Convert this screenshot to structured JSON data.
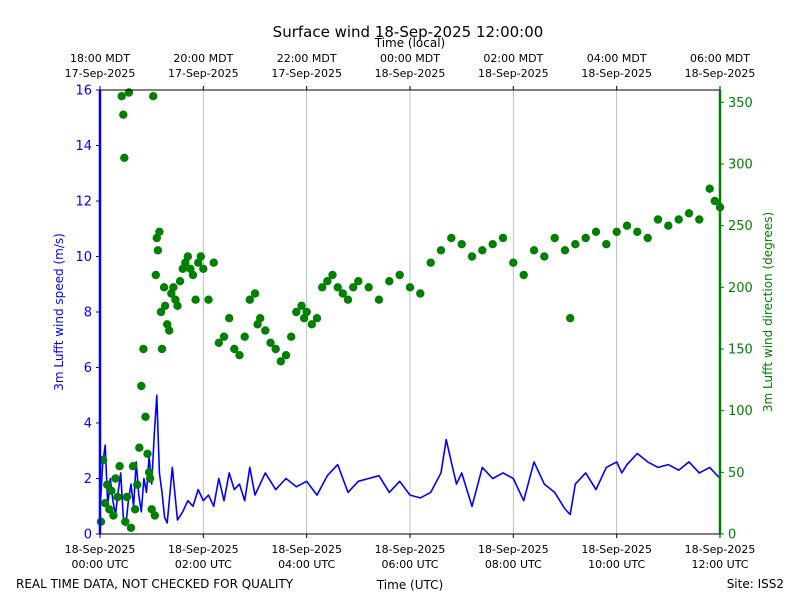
{
  "chart_data": {
    "type": "line",
    "title": "Surface wind 18-Sep-2025 12:00:00",
    "top_axis_title": "Time (local)",
    "xlabel": "Time (UTC)",
    "ylabel_left": "3m Lufft wind speed (m/s)",
    "ylabel_right": "3m Lufft wind direction (degrees)",
    "left_color": "#0000ff",
    "right_color": "#008000",
    "x_unit": "hours since 18-Sep-2025 00:00 UTC",
    "xlim": [
      0,
      12
    ],
    "ylim_left": [
      0,
      16
    ],
    "ylim_right": [
      0,
      360
    ],
    "yticks_left": [
      "0",
      "2",
      "4",
      "6",
      "8",
      "10",
      "12",
      "14",
      "16"
    ],
    "yticks_right": [
      "0",
      "50",
      "100",
      "150",
      "200",
      "250",
      "300",
      "350"
    ],
    "grid": "vertical lines at UTC ticks",
    "footer_left": "REAL TIME DATA, NOT CHECKED FOR QUALITY",
    "footer_right": "Site: ISS2",
    "x_ticks_bottom": [
      {
        "x": 0,
        "date": "18-Sep-2025",
        "time": "00:00 UTC"
      },
      {
        "x": 2,
        "date": "18-Sep-2025",
        "time": "02:00 UTC"
      },
      {
        "x": 4,
        "date": "18-Sep-2025",
        "time": "04:00 UTC"
      },
      {
        "x": 6,
        "date": "18-Sep-2025",
        "time": "06:00 UTC"
      },
      {
        "x": 8,
        "date": "18-Sep-2025",
        "time": "08:00 UTC"
      },
      {
        "x": 10,
        "date": "18-Sep-2025",
        "time": "10:00 UTC"
      },
      {
        "x": 12,
        "date": "18-Sep-2025",
        "time": "12:00 UTC"
      }
    ],
    "x_ticks_top": [
      {
        "x": 0,
        "time": "18:00 MDT",
        "date": "17-Sep-2025"
      },
      {
        "x": 2,
        "time": "20:00 MDT",
        "date": "17-Sep-2025"
      },
      {
        "x": 4,
        "time": "22:00 MDT",
        "date": "17-Sep-2025"
      },
      {
        "x": 6,
        "time": "00:00 MDT",
        "date": "18-Sep-2025"
      },
      {
        "x": 8,
        "time": "02:00 MDT",
        "date": "18-Sep-2025"
      },
      {
        "x": 10,
        "time": "04:00 MDT",
        "date": "18-Sep-2025"
      },
      {
        "x": 12,
        "time": "06:00 MDT",
        "date": "18-Sep-2025"
      }
    ],
    "series": [
      {
        "name": "3m Lufft wind speed (m/s)",
        "axis": "left",
        "style": "line",
        "x": [
          0,
          0.05,
          0.1,
          0.15,
          0.2,
          0.25,
          0.3,
          0.35,
          0.4,
          0.45,
          0.5,
          0.55,
          0.6,
          0.65,
          0.7,
          0.75,
          0.8,
          0.85,
          0.9,
          0.95,
          1.0,
          1.05,
          1.1,
          1.15,
          1.2,
          1.25,
          1.3,
          1.35,
          1.4,
          1.5,
          1.6,
          1.7,
          1.8,
          1.9,
          2.0,
          2.1,
          2.2,
          2.3,
          2.4,
          2.5,
          2.6,
          2.7,
          2.8,
          2.9,
          3.0,
          3.2,
          3.4,
          3.6,
          3.8,
          4.0,
          4.2,
          4.4,
          4.6,
          4.8,
          5.0,
          5.2,
          5.4,
          5.6,
          5.8,
          6.0,
          6.2,
          6.4,
          6.6,
          6.7,
          6.8,
          6.9,
          7.0,
          7.2,
          7.4,
          7.6,
          7.8,
          8.0,
          8.2,
          8.4,
          8.6,
          8.8,
          9.0,
          9.1,
          9.2,
          9.4,
          9.6,
          9.8,
          10.0,
          10.1,
          10.2,
          10.4,
          10.6,
          10.8,
          11.0,
          11.2,
          11.4,
          11.6,
          11.8,
          12.0
        ],
        "y": [
          0.8,
          2.5,
          3.2,
          1.0,
          2.0,
          1.2,
          0.7,
          1.5,
          2.2,
          0.6,
          0.3,
          1.2,
          1.8,
          1.0,
          2.6,
          1.4,
          0.8,
          2.0,
          1.5,
          2.8,
          1.8,
          3.6,
          5.0,
          2.2,
          1.5,
          0.6,
          0.4,
          1.4,
          2.4,
          0.5,
          0.8,
          1.2,
          1.0,
          1.6,
          1.2,
          1.4,
          1.0,
          2.0,
          1.2,
          2.2,
          1.6,
          1.8,
          1.2,
          2.4,
          1.4,
          2.2,
          1.6,
          2.0,
          1.7,
          1.9,
          1.4,
          2.1,
          2.5,
          1.5,
          1.9,
          2.0,
          2.1,
          1.5,
          1.9,
          1.4,
          1.3,
          1.5,
          2.2,
          3.4,
          2.6,
          1.8,
          2.2,
          1.0,
          2.4,
          2.0,
          2.2,
          2.0,
          1.2,
          2.6,
          1.8,
          1.5,
          0.9,
          0.7,
          1.8,
          2.2,
          1.6,
          2.4,
          2.6,
          2.2,
          2.5,
          2.9,
          2.6,
          2.4,
          2.5,
          2.3,
          2.6,
          2.2,
          2.4,
          2.0
        ]
      },
      {
        "name": "3m Lufft wind direction (degrees)",
        "axis": "right",
        "style": "scatter",
        "x": [
          0.02,
          0.06,
          0.1,
          0.14,
          0.18,
          0.22,
          0.26,
          0.3,
          0.34,
          0.38,
          0.42,
          0.45,
          0.47,
          0.49,
          0.52,
          0.56,
          0.6,
          0.64,
          0.68,
          0.72,
          0.76,
          0.8,
          0.84,
          0.88,
          0.92,
          0.95,
          0.97,
          1.0,
          1.03,
          1.06,
          1.08,
          1.1,
          1.12,
          1.15,
          1.18,
          1.2,
          1.24,
          1.26,
          1.3,
          1.34,
          1.38,
          1.42,
          1.46,
          1.5,
          1.55,
          1.6,
          1.65,
          1.7,
          1.75,
          1.8,
          1.85,
          1.9,
          1.95,
          2.0,
          2.1,
          2.2,
          2.3,
          2.4,
          2.5,
          2.6,
          2.7,
          2.8,
          2.9,
          3.0,
          3.05,
          3.1,
          3.2,
          3.3,
          3.4,
          3.5,
          3.6,
          3.7,
          3.8,
          3.9,
          3.95,
          4.0,
          4.1,
          4.2,
          4.3,
          4.4,
          4.5,
          4.6,
          4.7,
          4.8,
          4.9,
          5.0,
          5.2,
          5.4,
          5.6,
          5.8,
          6.0,
          6.2,
          6.4,
          6.6,
          6.8,
          7.0,
          7.2,
          7.4,
          7.6,
          7.8,
          8.0,
          8.2,
          8.4,
          8.6,
          8.8,
          9.0,
          9.1,
          9.2,
          9.4,
          9.6,
          9.8,
          10.0,
          10.2,
          10.4,
          10.6,
          10.8,
          11.0,
          11.2,
          11.4,
          11.6,
          11.8,
          11.9,
          12.0
        ],
        "y": [
          10,
          60,
          25,
          40,
          20,
          35,
          15,
          45,
          30,
          55,
          355,
          340,
          305,
          10,
          30,
          358,
          5,
          55,
          20,
          40,
          70,
          120,
          150,
          95,
          65,
          50,
          45,
          20,
          355,
          15,
          210,
          240,
          230,
          245,
          180,
          150,
          200,
          185,
          170,
          165,
          195,
          200,
          190,
          185,
          205,
          215,
          220,
          225,
          215,
          210,
          190,
          220,
          225,
          215,
          190,
          220,
          155,
          160,
          175,
          150,
          145,
          160,
          190,
          195,
          170,
          175,
          165,
          155,
          150,
          140,
          145,
          160,
          180,
          185,
          175,
          180,
          170,
          175,
          200,
          205,
          210,
          200,
          195,
          190,
          200,
          205,
          200,
          190,
          205,
          210,
          200,
          195,
          220,
          230,
          240,
          235,
          225,
          230,
          235,
          240,
          220,
          210,
          230,
          225,
          240,
          230,
          175,
          235,
          240,
          245,
          235,
          245,
          250,
          245,
          240,
          255,
          250,
          255,
          260,
          255,
          280,
          270,
          265
        ]
      }
    ]
  }
}
